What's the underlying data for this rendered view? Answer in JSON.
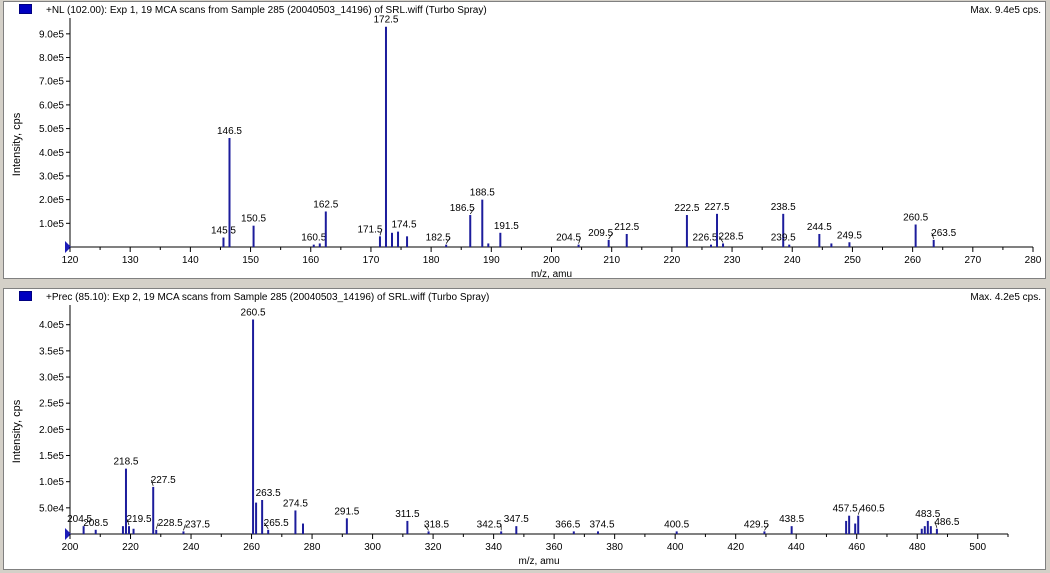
{
  "panels": [
    {
      "title": "+NL (102.00): Exp 1, 19 MCA scans from Sample 285 (20040503_14196) of SRL.wiff (Turbo Spray)",
      "max": "Max. 9.4e5 cps."
    },
    {
      "title": "+Prec (85.10): Exp 2, 19 MCA scans from Sample 285 (20040503_14196) of SRL.wiff (Turbo Spray)",
      "max": "Max. 4.2e5 cps."
    }
  ],
  "colors": {
    "trace": "#1c1c9c",
    "marker": "#0000c0",
    "axis": "#000000"
  },
  "chart_data": [
    {
      "type": "bar",
      "title": "+NL (102.00): Exp 1, 19 MCA scans from Sample 285 (20040503_14196) of SRL.wiff (Turbo Spray)",
      "xlabel": "m/z, amu",
      "ylabel": "Intensity, cps",
      "xlim": [
        120,
        280
      ],
      "ylim": [
        0,
        950000
      ],
      "xticks": [
        120,
        130,
        140,
        150,
        160,
        170,
        180,
        190,
        200,
        210,
        220,
        230,
        240,
        250,
        260,
        270,
        280
      ],
      "yticks": [
        100000,
        200000,
        300000,
        400000,
        500000,
        600000,
        700000,
        800000,
        900000
      ],
      "ytick_labels": [
        "1.0e5",
        "2.0e5",
        "3.0e5",
        "4.0e5",
        "5.0e5",
        "6.0e5",
        "7.0e5",
        "8.0e5",
        "9.0e5"
      ],
      "peaks": [
        {
          "x": 145.5,
          "y": 40000,
          "label": "145.5"
        },
        {
          "x": 146.5,
          "y": 460000,
          "label": "146.5"
        },
        {
          "x": 150.5,
          "y": 90000,
          "label": "150.5"
        },
        {
          "x": 160.5,
          "y": 10000,
          "label": "160.5"
        },
        {
          "x": 161.5,
          "y": 15000
        },
        {
          "x": 162.5,
          "y": 150000,
          "label": "162.5"
        },
        {
          "x": 171.5,
          "y": 45000,
          "label": "171.5"
        },
        {
          "x": 172.5,
          "y": 930000,
          "label": "172.5"
        },
        {
          "x": 173.5,
          "y": 60000
        },
        {
          "x": 174.5,
          "y": 65000,
          "label": "174.5"
        },
        {
          "x": 176,
          "y": 45000
        },
        {
          "x": 182.5,
          "y": 10000,
          "label": "182.5"
        },
        {
          "x": 186.5,
          "y": 135000,
          "label": "186.5"
        },
        {
          "x": 188.5,
          "y": 200000,
          "label": "188.5"
        },
        {
          "x": 189.5,
          "y": 15000
        },
        {
          "x": 191.5,
          "y": 60000,
          "label": "191.5"
        },
        {
          "x": 204.5,
          "y": 10000,
          "label": "204.5"
        },
        {
          "x": 209.5,
          "y": 30000,
          "label": "209.5"
        },
        {
          "x": 212.5,
          "y": 55000,
          "label": "212.5"
        },
        {
          "x": 222.5,
          "y": 135000,
          "label": "222.5"
        },
        {
          "x": 226.5,
          "y": 10000,
          "label": "226.5"
        },
        {
          "x": 227.5,
          "y": 140000,
          "label": "227.5"
        },
        {
          "x": 228.5,
          "y": 15000,
          "label": "228.5"
        },
        {
          "x": 238.5,
          "y": 140000,
          "label": "238.5"
        },
        {
          "x": 239.5,
          "y": 10000,
          "label": "239.5"
        },
        {
          "x": 244.5,
          "y": 55000,
          "label": "244.5"
        },
        {
          "x": 246.5,
          "y": 15000
        },
        {
          "x": 249.5,
          "y": 20000,
          "label": "249.5"
        },
        {
          "x": 260.5,
          "y": 95000,
          "label": "260.5"
        },
        {
          "x": 263.5,
          "y": 30000,
          "label": "263.5"
        }
      ]
    },
    {
      "type": "bar",
      "title": "+Prec (85.10): Exp 2, 19 MCA scans from Sample 285 (20040503_14196) of SRL.wiff (Turbo Spray)",
      "xlabel": "m/z, amu",
      "ylabel": "Intensity, cps",
      "xlim": [
        200,
        510
      ],
      "ylim": [
        0,
        430000
      ],
      "xticks": [
        200,
        220,
        240,
        260,
        280,
        300,
        320,
        340,
        360,
        380,
        400,
        420,
        440,
        460,
        480,
        500
      ],
      "yticks": [
        50000,
        100000,
        150000,
        200000,
        250000,
        300000,
        350000,
        400000
      ],
      "ytick_labels": [
        "5.0e4",
        "1.0e5",
        "1.5e5",
        "2.0e5",
        "2.5e5",
        "3.0e5",
        "3.5e5",
        "4.0e5"
      ],
      "peaks": [
        {
          "x": 204.5,
          "y": 15000,
          "label": "204.5"
        },
        {
          "x": 208.5,
          "y": 8000,
          "label": "208.5"
        },
        {
          "x": 217.5,
          "y": 15000
        },
        {
          "x": 218.5,
          "y": 125000,
          "label": "218.5"
        },
        {
          "x": 219.5,
          "y": 15000,
          "label": "219.5"
        },
        {
          "x": 221,
          "y": 10000
        },
        {
          "x": 227.5,
          "y": 90000,
          "label": "227.5"
        },
        {
          "x": 228.5,
          "y": 8000,
          "label": "228.5"
        },
        {
          "x": 237.5,
          "y": 5000,
          "label": "237.5"
        },
        {
          "x": 260.5,
          "y": 410000,
          "label": "260.5"
        },
        {
          "x": 261.5,
          "y": 60000
        },
        {
          "x": 263.5,
          "y": 65000,
          "label": "263.5"
        },
        {
          "x": 265.5,
          "y": 8000,
          "label": "265.5"
        },
        {
          "x": 274.5,
          "y": 45000,
          "label": "274.5"
        },
        {
          "x": 277,
          "y": 20000
        },
        {
          "x": 291.5,
          "y": 30000,
          "label": "291.5"
        },
        {
          "x": 311.5,
          "y": 25000,
          "label": "311.5"
        },
        {
          "x": 318.5,
          "y": 5000,
          "label": "318.5"
        },
        {
          "x": 342.5,
          "y": 5000,
          "label": "342.5"
        },
        {
          "x": 347.5,
          "y": 15000,
          "label": "347.5"
        },
        {
          "x": 366.5,
          "y": 5000,
          "label": "366.5"
        },
        {
          "x": 374.5,
          "y": 5000,
          "label": "374.5"
        },
        {
          "x": 400.5,
          "y": 5000,
          "label": "400.5"
        },
        {
          "x": 429.5,
          "y": 5000,
          "label": "429.5"
        },
        {
          "x": 438.5,
          "y": 15000,
          "label": "438.5"
        },
        {
          "x": 456.5,
          "y": 25000
        },
        {
          "x": 457.5,
          "y": 35000,
          "label": "457.5"
        },
        {
          "x": 459.5,
          "y": 20000
        },
        {
          "x": 460.5,
          "y": 35000,
          "label": "460.5"
        },
        {
          "x": 481.5,
          "y": 10000
        },
        {
          "x": 482.5,
          "y": 15000
        },
        {
          "x": 483.5,
          "y": 25000,
          "label": "483.5"
        },
        {
          "x": 484.5,
          "y": 15000
        },
        {
          "x": 486.5,
          "y": 10000,
          "label": "486.5"
        }
      ]
    }
  ]
}
